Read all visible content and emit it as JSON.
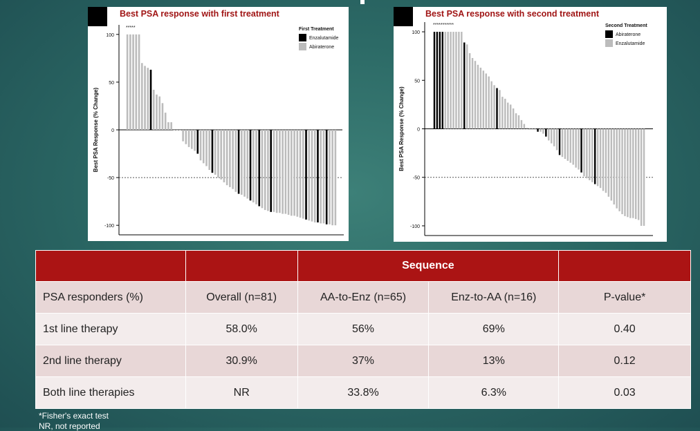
{
  "chart_data": [
    {
      "type": "bar",
      "title": "Best PSA response with first treatment",
      "ylabel": "Best PSA Response (% Change)",
      "xlabel": "",
      "ylim": [
        -110,
        110
      ],
      "yticks": [
        100,
        50,
        0,
        -50,
        -100
      ],
      "reference_line": -50,
      "annotation": "*****",
      "legend": {
        "title": "First Treatment",
        "position": "top-right",
        "entries": [
          {
            "name": "Enzalutamide",
            "color": "#000000"
          },
          {
            "name": "Abiraterone",
            "color": "#bcbcbc"
          }
        ]
      },
      "series": [
        {
          "name": "Enzalutamide",
          "color": "#000000"
        },
        {
          "name": "Abiraterone",
          "color": "#bcbcbc"
        }
      ],
      "values": [
        100,
        100,
        100,
        100,
        100,
        70,
        67,
        65,
        63,
        42,
        37,
        35,
        28,
        18,
        8,
        8,
        0,
        0,
        0,
        -12,
        -15,
        -18,
        -20,
        -22,
        -25,
        -32,
        -35,
        -38,
        -42,
        -45,
        -47,
        -50,
        -52,
        -55,
        -58,
        -60,
        -62,
        -65,
        -67,
        -68,
        -70,
        -72,
        -74,
        -76,
        -78,
        -80,
        -82,
        -84,
        -85,
        -86,
        -86,
        -87,
        -87,
        -88,
        -88,
        -89,
        -90,
        -90,
        -91,
        -92,
        -93,
        -94,
        -95,
        -96,
        -97,
        -97,
        -98,
        -98,
        -99,
        -99,
        -100,
        -100
      ],
      "series_index": [
        1,
        1,
        1,
        1,
        1,
        1,
        1,
        1,
        0,
        1,
        1,
        1,
        1,
        1,
        1,
        1,
        1,
        1,
        1,
        1,
        1,
        1,
        1,
        1,
        0,
        1,
        1,
        1,
        1,
        0,
        1,
        1,
        1,
        1,
        1,
        1,
        1,
        1,
        0,
        1,
        1,
        1,
        0,
        1,
        1,
        0,
        1,
        1,
        1,
        0,
        1,
        1,
        1,
        1,
        1,
        1,
        1,
        1,
        1,
        1,
        1,
        0,
        1,
        1,
        1,
        0,
        1,
        1,
        0,
        1,
        1,
        1
      ]
    },
    {
      "type": "bar",
      "title": "Best PSA response with second treatment",
      "ylabel": "Best PSA Response (% Change)",
      "xlabel": "",
      "ylim": [
        -110,
        110
      ],
      "yticks": [
        100,
        50,
        0,
        -50,
        -100
      ],
      "reference_line": -50,
      "annotation": "***********",
      "legend": {
        "title": "Second Treatment",
        "position": "top-right",
        "entries": [
          {
            "name": "Abiraterone",
            "color": "#000000"
          },
          {
            "name": "Enzalutamide",
            "color": "#bcbcbc"
          }
        ]
      },
      "series": [
        {
          "name": "Abiraterone",
          "color": "#000000"
        },
        {
          "name": "Enzalutamide",
          "color": "#bcbcbc"
        }
      ],
      "values": [
        100,
        100,
        100,
        100,
        100,
        100,
        100,
        100,
        100,
        100,
        100,
        89,
        87,
        78,
        73,
        70,
        66,
        63,
        60,
        57,
        54,
        49,
        45,
        42,
        40,
        33,
        31,
        27,
        25,
        21,
        16,
        14,
        9,
        5,
        1,
        0,
        0,
        0,
        -3,
        -3,
        -5,
        -8,
        -12,
        -15,
        -18,
        -22,
        -27,
        -29,
        -31,
        -33,
        -35,
        -37,
        -40,
        -42,
        -45,
        -49,
        -51,
        -53,
        -55,
        -57,
        -59,
        -61,
        -64,
        -66,
        -70,
        -74,
        -78,
        -82,
        -85,
        -88,
        -90,
        -91,
        -92,
        -92,
        -93,
        -94,
        -100,
        -100
      ],
      "series_index": [
        0,
        0,
        0,
        0,
        1,
        1,
        1,
        1,
        1,
        1,
        1,
        0,
        1,
        1,
        1,
        1,
        1,
        1,
        1,
        1,
        1,
        1,
        1,
        0,
        1,
        1,
        1,
        1,
        1,
        1,
        1,
        1,
        1,
        1,
        1,
        1,
        1,
        1,
        0,
        1,
        1,
        0,
        1,
        1,
        1,
        1,
        0,
        1,
        1,
        1,
        1,
        1,
        1,
        1,
        0,
        1,
        1,
        1,
        1,
        0,
        1,
        1,
        1,
        1,
        1,
        1,
        1,
        1,
        1,
        1,
        1,
        1,
        1,
        1,
        1,
        1,
        1,
        1
      ]
    }
  ],
  "table": {
    "header": [
      "",
      "",
      "Sequence",
      ""
    ],
    "subheader": [
      "PSA responders (%)",
      "Overall (n=81)",
      "AA-to-Enz (n=65)",
      "Enz-to-AA (n=16)",
      "P-value*"
    ],
    "rows": [
      [
        "1st line therapy",
        "58.0%",
        "56%",
        "69%",
        "0.40"
      ],
      [
        "2nd line therapy",
        "30.9%",
        "37%",
        "13%",
        "0.12"
      ],
      [
        "Both line therapies",
        "NR",
        "33.8%",
        "6.3%",
        "0.03"
      ]
    ]
  },
  "footnotes": {
    "fisher": "*Fisher's exact test",
    "nr": "NR, not reported"
  }
}
